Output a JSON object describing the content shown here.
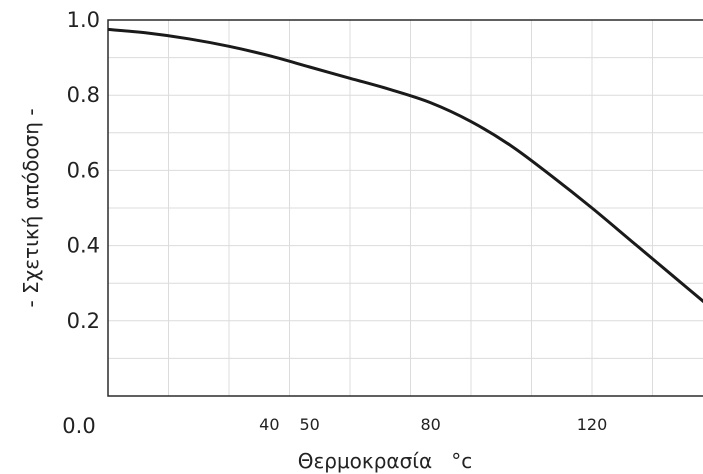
{
  "chart_data": {
    "type": "line",
    "title": "",
    "xlabel": "Θερμοκρασία   °c",
    "ylabel": "- Σχετική απόδοση -",
    "xlim": [
      0,
      150
    ],
    "ylim": [
      0,
      1.0
    ],
    "grid": true,
    "y_ticks": [
      {
        "value": 1.0,
        "label": "1.0"
      },
      {
        "value": 0.8,
        "label": "0.8"
      },
      {
        "value": 0.6,
        "label": "0.6"
      },
      {
        "value": 0.4,
        "label": "0.4"
      },
      {
        "value": 0.2,
        "label": "0.2"
      }
    ],
    "x_ticks": [
      {
        "value": 0,
        "label": "0.0"
      },
      {
        "value": 40,
        "label": "40"
      },
      {
        "value": 50,
        "label": "50"
      },
      {
        "value": 80,
        "label": "80"
      },
      {
        "value": 120,
        "label": "120"
      }
    ],
    "series": [
      {
        "x": [
          0,
          10,
          20,
          30,
          40,
          50,
          60,
          70,
          80,
          90,
          100,
          110,
          120,
          130,
          140,
          150
        ],
        "y": [
          0.975,
          0.965,
          0.95,
          0.93,
          0.905,
          0.875,
          0.845,
          0.815,
          0.78,
          0.73,
          0.665,
          0.585,
          0.5,
          0.41,
          0.32,
          0.23
        ],
        "color": "#1a1a1a"
      }
    ]
  }
}
